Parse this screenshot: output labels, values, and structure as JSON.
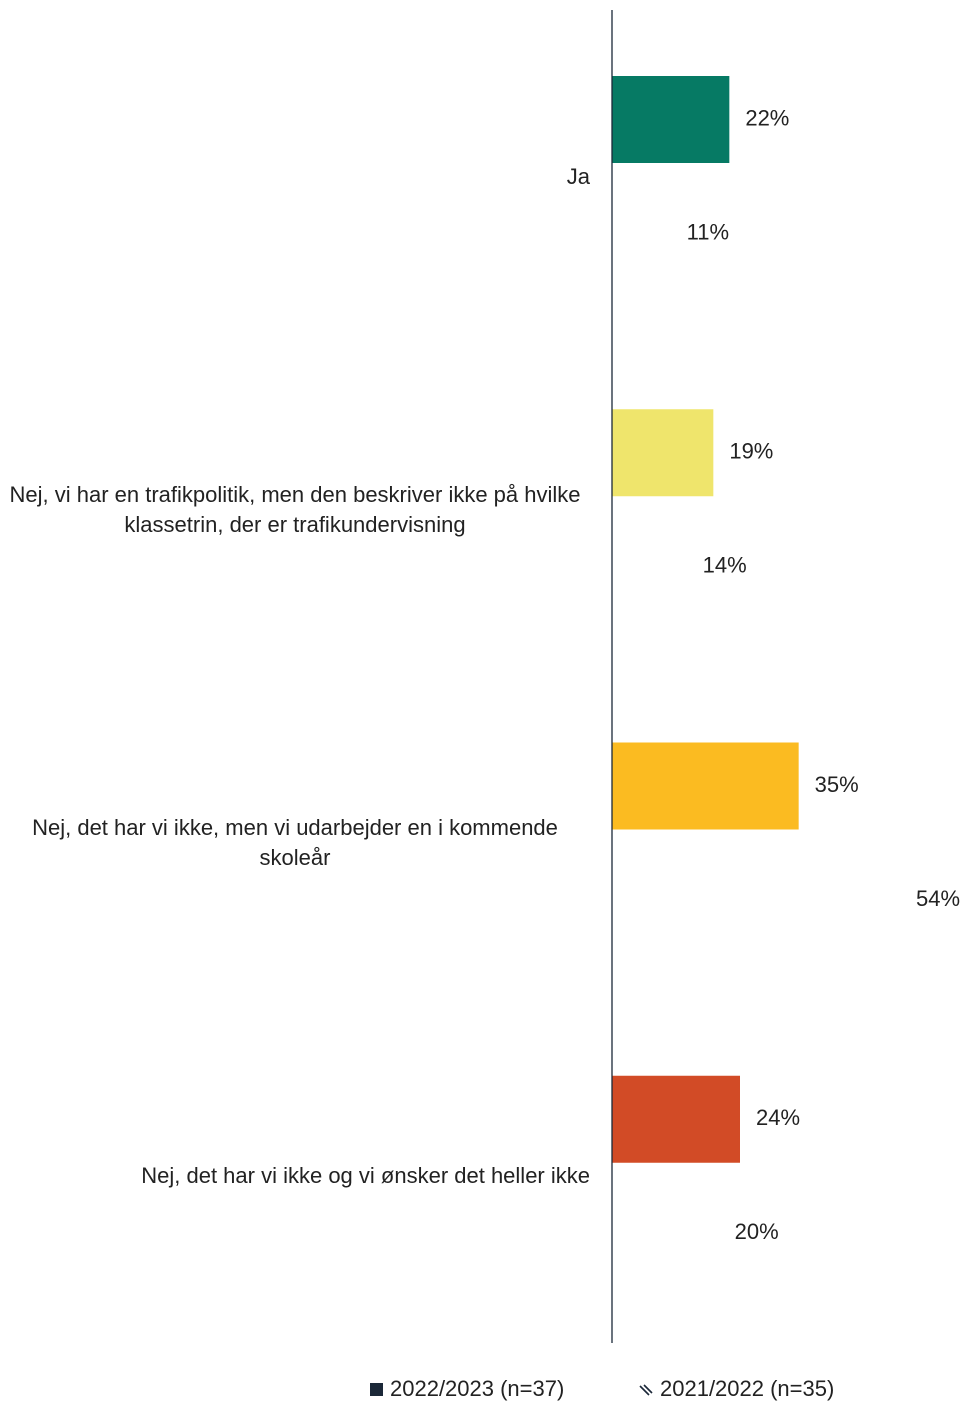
{
  "chart_data": {
    "type": "barh",
    "categories": [
      "Ja",
      "Nej, vi har en trafikpolitik, men den beskriver ikke på hvilke klassetrin, der er trafikundervisning",
      "Nej, det har vi ikke, men vi udarbejder en i kommende skoleår",
      "Nej, det har vi ikke og vi ønsker det heller ikke"
    ],
    "series": [
      {
        "name": "2022/2023 (n=37)",
        "color": "#1b2838",
        "colors": [
          "#067a64",
          "#efe56c",
          "#fbbb21",
          "#d24b26"
        ],
        "values": [
          22,
          19,
          35,
          24
        ],
        "value_labels": [
          "22%",
          "19%",
          "35%",
          "24%"
        ]
      },
      {
        "name": "2021/2022 (n=35)",
        "color": "#ffffff",
        "values": [
          11,
          14,
          54,
          20
        ],
        "value_labels": [
          "11%",
          "14%",
          "54%",
          "20%"
        ]
      }
    ],
    "xlim": [
      0,
      60
    ],
    "legend": "bottom"
  }
}
